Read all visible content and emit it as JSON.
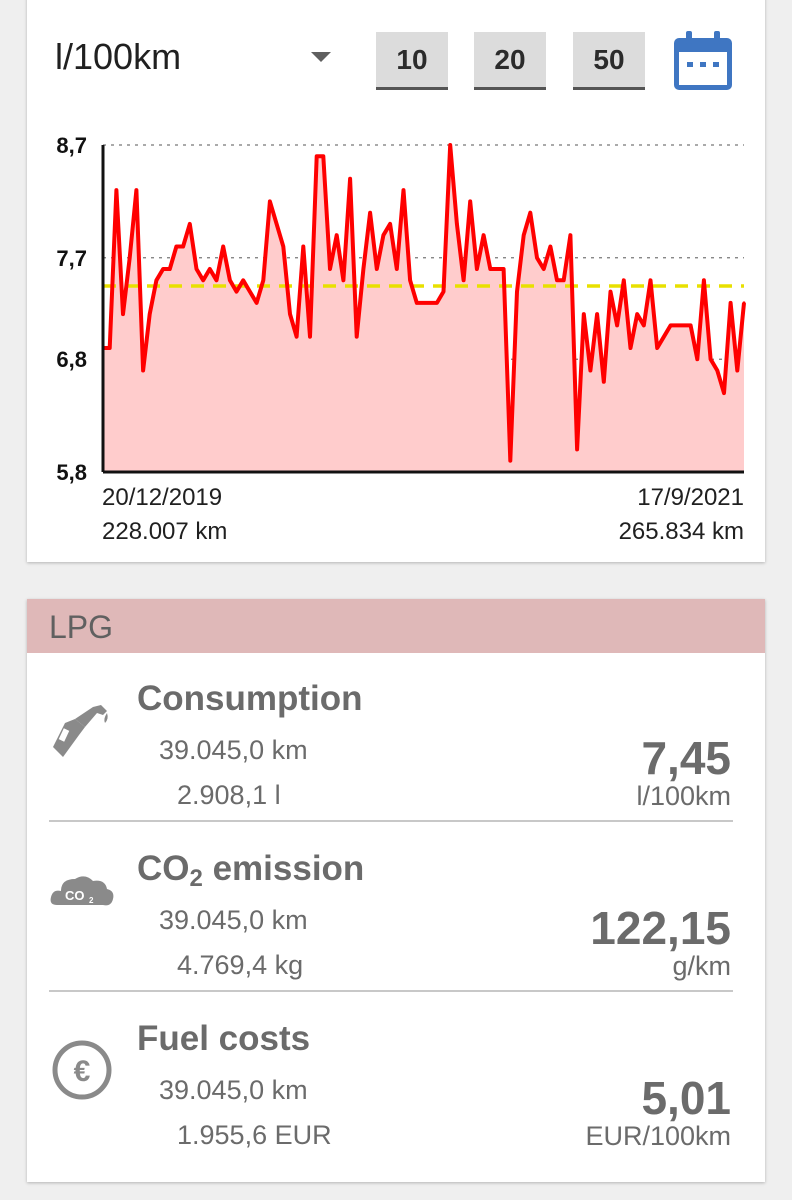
{
  "toolbar": {
    "unit_label": "l/100km",
    "range_buttons": [
      "10",
      "20",
      "50"
    ],
    "calendar_icon": "calendar-icon"
  },
  "chart_data": {
    "type": "area",
    "ylim": [
      5.8,
      8.7
    ],
    "yticks": [
      "8,7",
      "7,7",
      "6,8",
      "5,8"
    ],
    "ytick_values": [
      8.7,
      7.7,
      6.8,
      5.8
    ],
    "average": 7.45,
    "start_date": "20/12/2019",
    "start_odometer": "228.007 km",
    "end_date": "17/9/2021",
    "end_odometer": "265.834 km",
    "line_color": "#ff0000",
    "fill_color": "#ffcccc",
    "average_color": "#e8e000",
    "values": [
      6.9,
      6.9,
      8.3,
      7.2,
      7.7,
      8.3,
      6.7,
      7.2,
      7.5,
      7.6,
      7.6,
      7.8,
      7.8,
      8.0,
      7.6,
      7.5,
      7.6,
      7.5,
      7.8,
      7.5,
      7.4,
      7.5,
      7.4,
      7.3,
      7.5,
      8.2,
      8.0,
      7.8,
      7.2,
      7.0,
      7.8,
      7.0,
      8.6,
      8.6,
      7.6,
      7.9,
      7.5,
      8.4,
      7.0,
      7.6,
      8.1,
      7.6,
      7.9,
      8.0,
      7.6,
      8.3,
      7.5,
      7.3,
      7.3,
      7.3,
      7.3,
      7.4,
      8.7,
      8.0,
      7.5,
      8.2,
      7.6,
      7.9,
      7.6,
      7.6,
      7.6,
      5.9,
      7.4,
      7.9,
      8.1,
      7.7,
      7.6,
      7.8,
      7.5,
      7.5,
      7.9,
      6.0,
      7.2,
      6.7,
      7.2,
      6.6,
      7.4,
      7.1,
      7.5,
      6.9,
      7.2,
      7.1,
      7.5,
      6.9,
      7.0,
      7.1,
      7.1,
      7.1,
      7.1,
      6.8,
      7.5,
      6.8,
      6.7,
      6.5,
      7.3,
      6.7,
      7.3
    ]
  },
  "stats": {
    "header": "LPG",
    "colors": {
      "header_bg": "#dfb8b8",
      "text": "#6b6b6b"
    },
    "consumption": {
      "title": "Consumption",
      "distance": "39.045,0 km",
      "amount": "2.908,1 l",
      "value": "7,45",
      "unit": "l/100km",
      "icon": "fuel-pump-icon"
    },
    "co2": {
      "title_prefix": "CO",
      "title_sub": "2",
      "title_suffix": " emission",
      "distance": "39.045,0 km",
      "amount": "4.769,4 kg",
      "value": "122,15",
      "unit": "g/km",
      "icon": "co2-cloud-icon",
      "icon_text": "CO",
      "icon_sub": "2"
    },
    "costs": {
      "title": "Fuel costs",
      "distance": "39.045,0 km",
      "amount": "1.955,6 EUR",
      "value": "5,01",
      "unit": "EUR/100km",
      "icon": "euro-icon",
      "icon_text": "€"
    }
  }
}
